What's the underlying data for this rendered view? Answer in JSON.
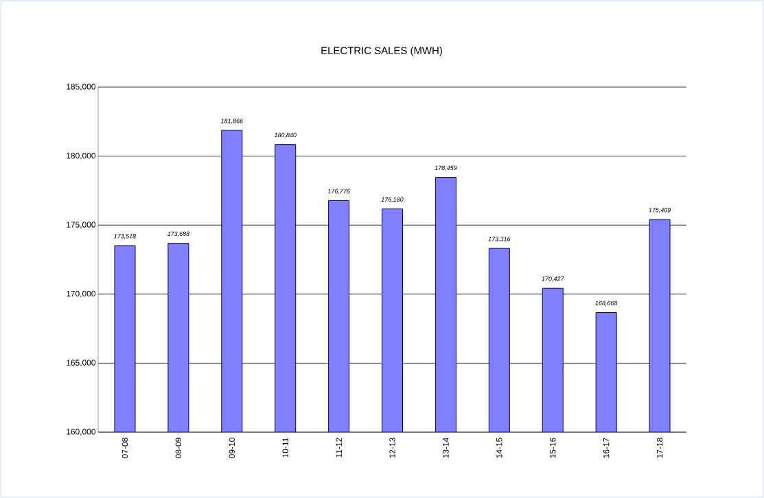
{
  "chart_data": {
    "type": "bar",
    "title": "ELECTRIC SALES (MWH)",
    "categories": [
      "07-08",
      "08-09",
      "09-10",
      "10-11",
      "11-12",
      "12-13",
      "13-14",
      "14-15",
      "15-16",
      "16-17",
      "17-18"
    ],
    "values": [
      173518,
      173688,
      181866,
      180840,
      176776,
      176180,
      178459,
      173316,
      170427,
      168668,
      175409
    ],
    "value_labels": [
      "173,518",
      "173,688",
      "181,866",
      "180,840",
      "176,776",
      "176,180",
      "178,459",
      "173,316",
      "170,427",
      "168,668",
      "175,409"
    ],
    "color": "#8080ff",
    "ylim": [
      160000,
      185000
    ],
    "yticks": [
      {
        "value": 160000,
        "label": "160,000"
      },
      {
        "value": 165000,
        "label": "165,000"
      },
      {
        "value": 170000,
        "label": "170,000"
      },
      {
        "value": 175000,
        "label": "175,000"
      },
      {
        "value": 180000,
        "label": "180,000"
      },
      {
        "value": 185000,
        "label": "185,000"
      }
    ],
    "grid": "y"
  }
}
